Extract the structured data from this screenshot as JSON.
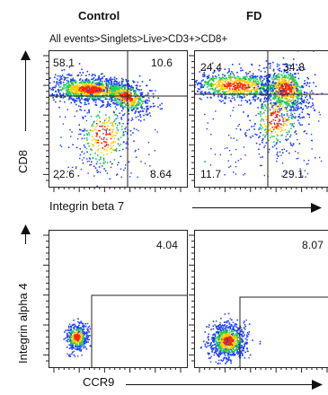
{
  "columns": [
    "Control",
    "FD"
  ],
  "gate_path": "All events>Singlets>Live>CD3+>CD8+",
  "top_row": {
    "x_label": "Integrin beta 7",
    "y_label": "CD8",
    "panels": [
      {
        "q_ul": "58.1",
        "q_ur": "10.6",
        "q_ll": "22.6",
        "q_lr": "8.64"
      },
      {
        "q_ul": "24.4",
        "q_ur": "34.8",
        "q_ll": "11.7",
        "q_lr": "29.1"
      }
    ]
  },
  "bottom_row": {
    "x_label": "CCR9",
    "y_label": "Integrin alpha 4",
    "panels": [
      {
        "gate_pct": "4.04"
      },
      {
        "gate_pct": "8.07"
      }
    ]
  },
  "chart_data": {
    "type": "scatter",
    "subtype": "flow-cytometry-pseudocolor",
    "plots": [
      {
        "group": "Control",
        "x": "Integrin beta 7",
        "y": "CD8",
        "quadrants": {
          "upper_left": 58.1,
          "upper_right": 10.6,
          "lower_left": 22.6,
          "lower_right": 8.64
        }
      },
      {
        "group": "FD",
        "x": "Integrin beta 7",
        "y": "CD8",
        "quadrants": {
          "upper_left": 24.4,
          "upper_right": 34.8,
          "lower_left": 11.7,
          "lower_right": 29.1
        }
      },
      {
        "group": "Control",
        "x": "CCR9",
        "y": "Integrin alpha 4",
        "gate_percent": 4.04
      },
      {
        "group": "FD",
        "x": "CCR9",
        "y": "Integrin alpha 4",
        "gate_percent": 8.07
      }
    ],
    "colors": {
      "low": "#1a3cff",
      "mid": "#22cc55",
      "high": "#ffcc00",
      "peak": "#ff2a00"
    }
  }
}
